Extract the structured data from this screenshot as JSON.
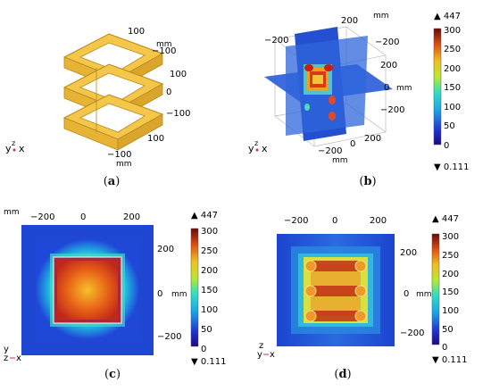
{
  "panels": {
    "a": {
      "caption_open": "(",
      "caption_letter": "a",
      "caption_close": ")",
      "unit_top": "mm",
      "unit_bottom": "mm",
      "ticks": [
        "100",
        "−100",
        "100",
        "0",
        "−100",
        "100",
        "−100"
      ],
      "axes": {
        "z": "z",
        "y": "y",
        "x": "x"
      }
    },
    "b": {
      "caption_open": "(",
      "caption_letter": "b",
      "caption_close": ")",
      "unit": "mm",
      "ticks": [
        "200",
        "−200",
        "200",
        "0",
        "−200",
        "200",
        "0",
        "−200",
        "−200"
      ],
      "axes": {
        "z": "z",
        "y": "y",
        "x": "x"
      },
      "colorbar": {
        "max": "▲ 447",
        "min": "▼ 0.111",
        "ticks": [
          "300",
          "250",
          "200",
          "150",
          "100",
          "50",
          "0"
        ]
      }
    },
    "c": {
      "caption_open": "(",
      "caption_letter": "c",
      "caption_close": ")",
      "unit_corner": "mm",
      "unit_side": "mm",
      "top_ticks": [
        "−200",
        "0",
        "200"
      ],
      "right_ticks": [
        "200",
        "0",
        "−200"
      ],
      "axes": {
        "y": "y",
        "z": "z",
        "x": "x"
      },
      "colorbar": {
        "max": "▲ 447",
        "min": "▼ 0.111",
        "ticks": [
          "300",
          "250",
          "200",
          "150",
          "100",
          "50",
          "0"
        ]
      }
    },
    "d": {
      "caption_open": "(",
      "caption_letter": "d",
      "caption_close": ")",
      "unit_side": "mm",
      "top_ticks": [
        "−200",
        "0",
        "200"
      ],
      "right_ticks": [
        "200",
        "0",
        "−200"
      ],
      "axes": {
        "z": "z",
        "y": "y",
        "x": "x"
      },
      "colorbar": {
        "max": "▲ 447",
        "min": "▼ 0.111",
        "ticks": [
          "300",
          "250",
          "200",
          "150",
          "100",
          "50",
          "0"
        ]
      }
    }
  },
  "colors": {
    "coil": "#f4c64a",
    "coil_edge": "#b88a1c",
    "field_low": "#1e3cc8",
    "field_high": "#b81c14"
  }
}
